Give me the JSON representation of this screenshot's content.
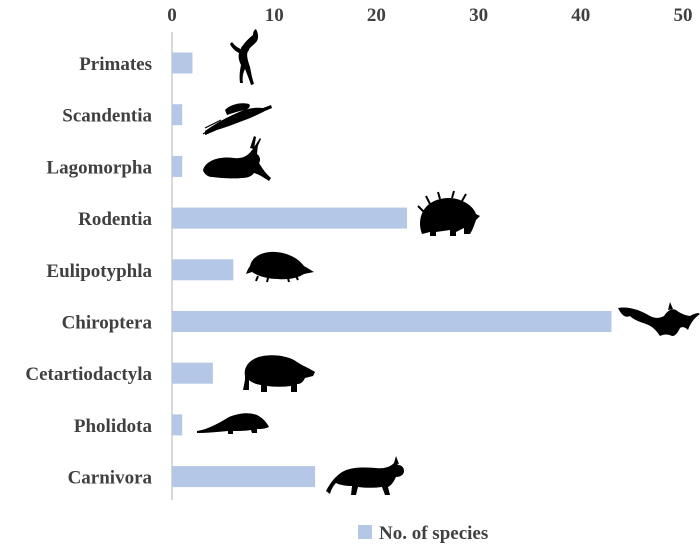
{
  "chart_data": {
    "type": "bar",
    "orientation": "horizontal",
    "categories": [
      "Primates",
      "Scandentia",
      "Lagomorpha",
      "Rodentia",
      "Eulipotyphla",
      "Chiroptera",
      "Cetartiodactyla",
      "Pholidota",
      "Carnivora"
    ],
    "series": [
      {
        "name": "No. of species",
        "values": [
          2,
          1,
          1,
          23,
          6,
          43,
          4,
          1,
          14
        ],
        "color": "#b4c7e7"
      }
    ],
    "xlim": [
      0,
      50
    ],
    "xticks": [
      0,
      10,
      20,
      30,
      40,
      50
    ],
    "x_axis_position": "top",
    "grid": false,
    "legend": {
      "position": "bottom-center"
    },
    "icons": [
      "monkey-icon",
      "treeshrew-icon",
      "rabbit-icon",
      "porcupine-icon",
      "shrew-icon",
      "bat-icon",
      "boar-icon",
      "pangolin-icon",
      "wildcat-icon"
    ],
    "label_color": "#404040"
  }
}
